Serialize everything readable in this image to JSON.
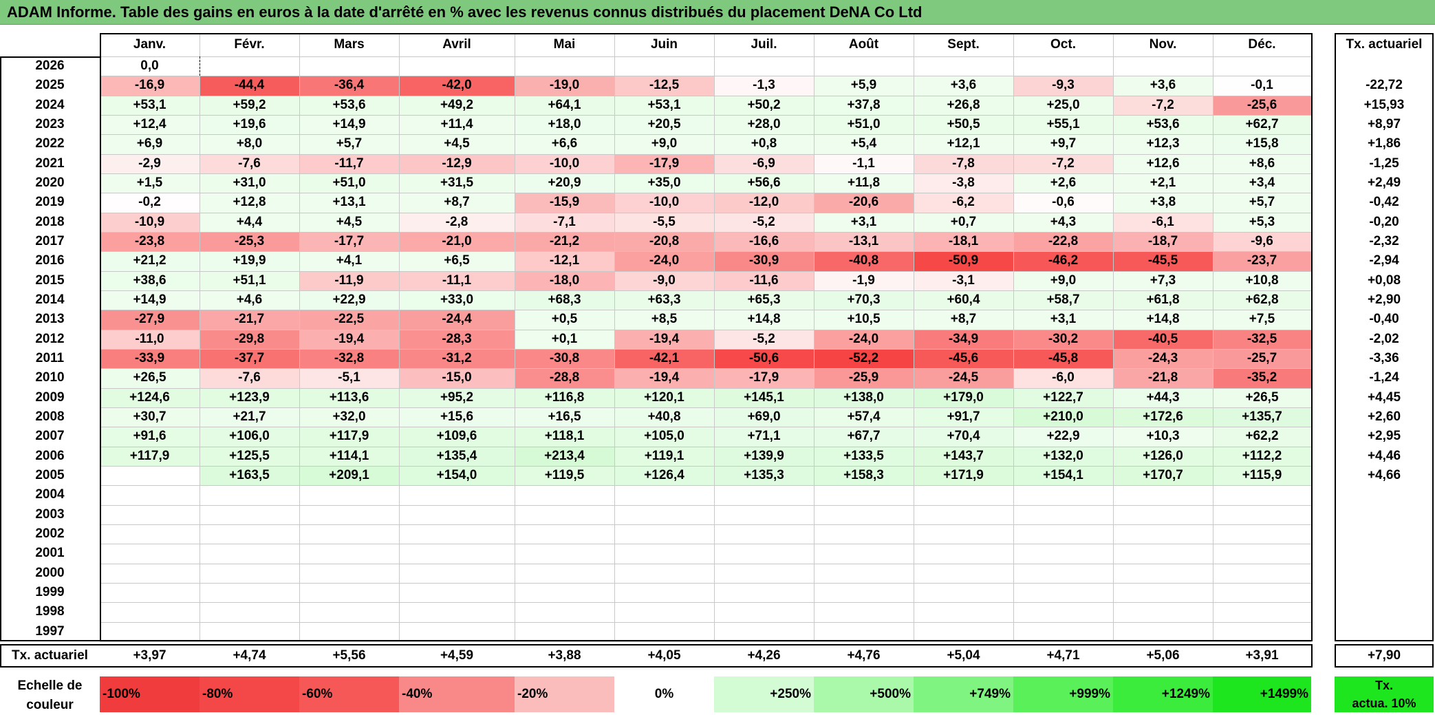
{
  "title": "ADAM Informe. Table des gains en euros à la date d'arrêté en % avec les revenus connus distribués du placement DeNA Co Ltd",
  "months": [
    "Janv.",
    "Févr.",
    "Mars",
    "Avril",
    "Mai",
    "Juin",
    "Juil.",
    "Août",
    "Sept.",
    "Oct.",
    "Nov.",
    "Déc."
  ],
  "actuarial_header": "Tx. actuariel",
  "rows": [
    {
      "year": "2026",
      "values": [
        "0,0",
        "",
        "",
        "",
        "",
        "",
        "",
        "",
        "",
        "",
        "",
        ""
      ],
      "actuarial": ""
    },
    {
      "year": "2025",
      "values": [
        "-16,9",
        "-44,4",
        "-36,4",
        "-42,0",
        "-19,0",
        "-12,5",
        "-1,3",
        "+5,9",
        "+3,6",
        "-9,3",
        "+3,6",
        "-0,1"
      ],
      "actuarial": "-22,72"
    },
    {
      "year": "2024",
      "values": [
        "+53,1",
        "+59,2",
        "+53,6",
        "+49,2",
        "+64,1",
        "+53,1",
        "+50,2",
        "+37,8",
        "+26,8",
        "+25,0",
        "-7,2",
        "-25,6"
      ],
      "actuarial": "+15,93"
    },
    {
      "year": "2023",
      "values": [
        "+12,4",
        "+19,6",
        "+14,9",
        "+11,4",
        "+18,0",
        "+20,5",
        "+28,0",
        "+51,0",
        "+50,5",
        "+55,1",
        "+53,6",
        "+62,7"
      ],
      "actuarial": "+8,97"
    },
    {
      "year": "2022",
      "values": [
        "+6,9",
        "+8,0",
        "+5,7",
        "+4,5",
        "+6,6",
        "+9,0",
        "+0,8",
        "+5,4",
        "+12,1",
        "+9,7",
        "+12,3",
        "+15,8"
      ],
      "actuarial": "+1,86"
    },
    {
      "year": "2021",
      "values": [
        "-2,9",
        "-7,6",
        "-11,7",
        "-12,9",
        "-10,0",
        "-17,9",
        "-6,9",
        "-1,1",
        "-7,8",
        "-7,2",
        "+12,6",
        "+8,6"
      ],
      "actuarial": "-1,25"
    },
    {
      "year": "2020",
      "values": [
        "+1,5",
        "+31,0",
        "+51,0",
        "+31,5",
        "+20,9",
        "+35,0",
        "+56,6",
        "+11,8",
        "-3,8",
        "+2,6",
        "+2,1",
        "+3,4"
      ],
      "actuarial": "+2,49"
    },
    {
      "year": "2019",
      "values": [
        "-0,2",
        "+12,8",
        "+13,1",
        "+8,7",
        "-15,9",
        "-10,0",
        "-12,0",
        "-20,6",
        "-6,2",
        "-0,6",
        "+3,8",
        "+5,7"
      ],
      "actuarial": "-0,42"
    },
    {
      "year": "2018",
      "values": [
        "-10,9",
        "+4,4",
        "+4,5",
        "-2,8",
        "-7,1",
        "-5,5",
        "-5,2",
        "+3,1",
        "+0,7",
        "+4,3",
        "-6,1",
        "+5,3"
      ],
      "actuarial": "-0,20"
    },
    {
      "year": "2017",
      "values": [
        "-23,8",
        "-25,3",
        "-17,7",
        "-21,0",
        "-21,2",
        "-20,8",
        "-16,6",
        "-13,1",
        "-18,1",
        "-22,8",
        "-18,7",
        "-9,6"
      ],
      "actuarial": "-2,32"
    },
    {
      "year": "2016",
      "values": [
        "+21,2",
        "+19,9",
        "+4,1",
        "+6,5",
        "-12,1",
        "-24,0",
        "-30,9",
        "-40,8",
        "-50,9",
        "-46,2",
        "-45,5",
        "-23,7"
      ],
      "actuarial": "-2,94"
    },
    {
      "year": "2015",
      "values": [
        "+38,6",
        "+51,1",
        "-11,9",
        "-11,1",
        "-18,0",
        "-9,0",
        "-11,6",
        "-1,9",
        "-3,1",
        "+9,0",
        "+7,3",
        "+10,8"
      ],
      "actuarial": "+0,08"
    },
    {
      "year": "2014",
      "values": [
        "+14,9",
        "+4,6",
        "+22,9",
        "+33,0",
        "+68,3",
        "+63,3",
        "+65,3",
        "+70,3",
        "+60,4",
        "+58,7",
        "+61,8",
        "+62,8"
      ],
      "actuarial": "+2,90"
    },
    {
      "year": "2013",
      "values": [
        "-27,9",
        "-21,7",
        "-22,5",
        "-24,4",
        "+0,5",
        "+8,5",
        "+14,8",
        "+10,5",
        "+8,7",
        "+3,1",
        "+14,8",
        "+7,5"
      ],
      "actuarial": "-0,40"
    },
    {
      "year": "2012",
      "values": [
        "-11,0",
        "-29,8",
        "-19,4",
        "-28,3",
        "+0,1",
        "-19,4",
        "-5,2",
        "-24,0",
        "-34,9",
        "-30,2",
        "-40,5",
        "-32,5"
      ],
      "actuarial": "-2,02"
    },
    {
      "year": "2011",
      "values": [
        "-33,9",
        "-37,7",
        "-32,8",
        "-31,2",
        "-30,8",
        "-42,1",
        "-50,6",
        "-52,2",
        "-45,6",
        "-45,8",
        "-24,3",
        "-25,7"
      ],
      "actuarial": "-3,36"
    },
    {
      "year": "2010",
      "values": [
        "+26,5",
        "-7,6",
        "-5,1",
        "-15,0",
        "-28,8",
        "-19,4",
        "-17,9",
        "-25,9",
        "-24,5",
        "-6,0",
        "-21,8",
        "-35,2"
      ],
      "actuarial": "-1,24"
    },
    {
      "year": "2009",
      "values": [
        "+124,6",
        "+123,9",
        "+113,6",
        "+95,2",
        "+116,8",
        "+120,1",
        "+145,1",
        "+138,0",
        "+179,0",
        "+122,7",
        "+44,3",
        "+26,5"
      ],
      "actuarial": "+4,45"
    },
    {
      "year": "2008",
      "values": [
        "+30,7",
        "+21,7",
        "+32,0",
        "+15,6",
        "+16,5",
        "+40,8",
        "+69,0",
        "+57,4",
        "+91,7",
        "+210,0",
        "+172,6",
        "+135,7"
      ],
      "actuarial": "+2,60"
    },
    {
      "year": "2007",
      "values": [
        "+91,6",
        "+106,0",
        "+117,9",
        "+109,6",
        "+118,1",
        "+105,0",
        "+71,1",
        "+67,7",
        "+70,4",
        "+22,9",
        "+10,3",
        "+62,2"
      ],
      "actuarial": "+2,95"
    },
    {
      "year": "2006",
      "values": [
        "+117,9",
        "+125,5",
        "+114,1",
        "+135,4",
        "+213,4",
        "+119,1",
        "+139,9",
        "+133,5",
        "+143,7",
        "+132,0",
        "+126,0",
        "+112,2"
      ],
      "actuarial": "+4,46"
    },
    {
      "year": "2005",
      "values": [
        "",
        "+163,5",
        "+209,1",
        "+154,0",
        "+119,5",
        "+126,4",
        "+135,3",
        "+158,3",
        "+171,9",
        "+154,1",
        "+170,7",
        "+115,9"
      ],
      "actuarial": "+4,66"
    },
    {
      "year": "2004",
      "values": [
        "",
        "",
        "",
        "",
        "",
        "",
        "",
        "",
        "",
        "",
        "",
        ""
      ],
      "actuarial": ""
    },
    {
      "year": "2003",
      "values": [
        "",
        "",
        "",
        "",
        "",
        "",
        "",
        "",
        "",
        "",
        "",
        ""
      ],
      "actuarial": ""
    },
    {
      "year": "2002",
      "values": [
        "",
        "",
        "",
        "",
        "",
        "",
        "",
        "",
        "",
        "",
        "",
        ""
      ],
      "actuarial": ""
    },
    {
      "year": "2001",
      "values": [
        "",
        "",
        "",
        "",
        "",
        "",
        "",
        "",
        "",
        "",
        "",
        ""
      ],
      "actuarial": ""
    },
    {
      "year": "2000",
      "values": [
        "",
        "",
        "",
        "",
        "",
        "",
        "",
        "",
        "",
        "",
        "",
        ""
      ],
      "actuarial": ""
    },
    {
      "year": "1999",
      "values": [
        "",
        "",
        "",
        "",
        "",
        "",
        "",
        "",
        "",
        "",
        "",
        ""
      ],
      "actuarial": ""
    },
    {
      "year": "1998",
      "values": [
        "",
        "",
        "",
        "",
        "",
        "",
        "",
        "",
        "",
        "",
        "",
        ""
      ],
      "actuarial": ""
    },
    {
      "year": "1997",
      "values": [
        "",
        "",
        "",
        "",
        "",
        "",
        "",
        "",
        "",
        "",
        "",
        ""
      ],
      "actuarial": ""
    }
  ],
  "footer": {
    "label": "Tx. actuariel",
    "values": [
      "+3,97",
      "+4,74",
      "+5,56",
      "+4,59",
      "+3,88",
      "+4,05",
      "+4,26",
      "+4,76",
      "+5,04",
      "+4,71",
      "+5,06",
      "+3,91"
    ],
    "overall": "+7,90"
  },
  "legend": {
    "label_line1": "Echelle de",
    "label_line2": "couleur",
    "steps": [
      {
        "text": "-100%",
        "color": "#f03c3c",
        "align": "left"
      },
      {
        "text": "-80%",
        "color": "#f44848",
        "align": "left"
      },
      {
        "text": "-60%",
        "color": "#f65858",
        "align": "left"
      },
      {
        "text": "-40%",
        "color": "#f98888",
        "align": "left"
      },
      {
        "text": "-20%",
        "color": "#fbbcbc",
        "align": "left"
      },
      {
        "text": "0%",
        "color": "#ffffff",
        "align": "center"
      },
      {
        "text": "+250%",
        "color": "#d4fcd4",
        "align": "right"
      },
      {
        "text": "+500%",
        "color": "#aaf8aa",
        "align": "right"
      },
      {
        "text": "+749%",
        "color": "#80f480",
        "align": "right"
      },
      {
        "text": "+999%",
        "color": "#5af05a",
        "align": "right"
      },
      {
        "text": "+1249%",
        "color": "#3cec3c",
        "align": "right"
      },
      {
        "text": "+1499%",
        "color": "#1ee61e",
        "align": "right"
      }
    ],
    "actuarial_line1": "Tx.",
    "actuarial_line2": "actua. 10%"
  }
}
